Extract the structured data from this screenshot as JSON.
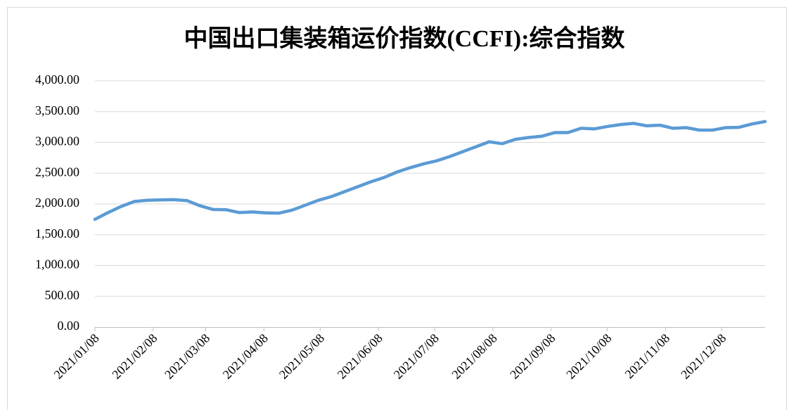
{
  "chart_data": {
    "type": "line",
    "title": "中国出口集装箱运价指数(CCFI):综合指数",
    "x": [
      "2021/01/08",
      "2021/01/15",
      "2021/01/22",
      "2021/01/29",
      "2021/02/05",
      "2021/02/12",
      "2021/02/19",
      "2021/02/26",
      "2021/03/05",
      "2021/03/12",
      "2021/03/19",
      "2021/03/26",
      "2021/04/02",
      "2021/04/09",
      "2021/04/16",
      "2021/04/23",
      "2021/04/30",
      "2021/05/07",
      "2021/05/14",
      "2021/05/21",
      "2021/05/28",
      "2021/06/04",
      "2021/06/11",
      "2021/06/18",
      "2021/06/25",
      "2021/07/02",
      "2021/07/09",
      "2021/07/16",
      "2021/07/23",
      "2021/07/30",
      "2021/08/06",
      "2021/08/13",
      "2021/08/20",
      "2021/08/27",
      "2021/09/03",
      "2021/09/10",
      "2021/09/17",
      "2021/09/24",
      "2021/10/01",
      "2021/10/08",
      "2021/10/15",
      "2021/10/22",
      "2021/10/29",
      "2021/11/05",
      "2021/11/12",
      "2021/11/19",
      "2021/11/26",
      "2021/12/03",
      "2021/12/10",
      "2021/12/17",
      "2021/12/24",
      "2021/12/31"
    ],
    "series": [
      {
        "name": "综合指数",
        "color": "#5b9bd5",
        "values": [
          1750,
          1860,
          1960,
          2040,
          2060,
          2065,
          2070,
          2055,
          1970,
          1910,
          1905,
          1860,
          1870,
          1855,
          1850,
          1900,
          1980,
          2060,
          2120,
          2200,
          2280,
          2360,
          2430,
          2520,
          2590,
          2650,
          2700,
          2770,
          2850,
          2930,
          3010,
          2980,
          3050,
          3080,
          3100,
          3160,
          3160,
          3230,
          3220,
          3260,
          3290,
          3310,
          3270,
          3280,
          3230,
          3240,
          3200,
          3200,
          3240,
          3245,
          3300,
          3340
        ]
      }
    ],
    "xlim": [
      "2021/01/08",
      "2021/12/31"
    ],
    "xticks": [
      "2021/01/08",
      "2021/02/08",
      "2021/03/08",
      "2021/04/08",
      "2021/05/08",
      "2021/06/08",
      "2021/07/08",
      "2021/08/08",
      "2021/09/08",
      "2021/10/08",
      "2021/11/08",
      "2021/12/08"
    ],
    "ylim": [
      0,
      4000
    ],
    "yticks": [
      {
        "value": 0,
        "label": "0.00"
      },
      {
        "value": 500,
        "label": "500.00"
      },
      {
        "value": 1000,
        "label": "1,000.00"
      },
      {
        "value": 1500,
        "label": "1,500.00"
      },
      {
        "value": 2000,
        "label": "2,000.00"
      },
      {
        "value": 2500,
        "label": "2,500.00"
      },
      {
        "value": 3000,
        "label": "3,000.00"
      },
      {
        "value": 3500,
        "label": "3,500.00"
      },
      {
        "value": 4000,
        "label": "4,000.00"
      }
    ],
    "grid": true
  }
}
